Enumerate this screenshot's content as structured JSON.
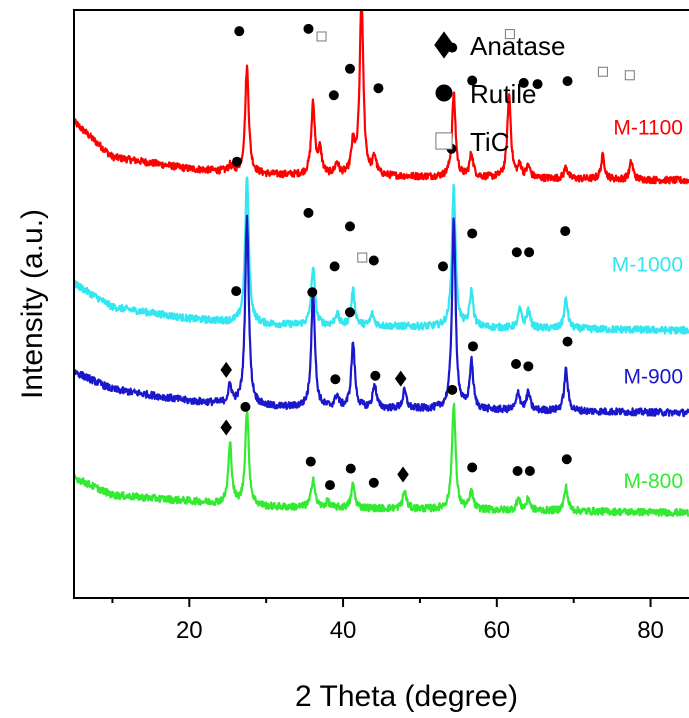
{
  "chart_data": {
    "type": "line",
    "title": "",
    "xlabel": "2 Theta (degree)",
    "ylabel": "Intensity (a.u.)",
    "xlim": [
      5,
      85
    ],
    "xticks": [
      20,
      40,
      60,
      80
    ],
    "y_tick_labels": false,
    "legend": {
      "placement": "top-right",
      "items": [
        {
          "marker": "diamond",
          "label": "Anatase"
        },
        {
          "marker": "circle",
          "label": "Rutile"
        },
        {
          "marker": "square-open",
          "label": "TiC"
        }
      ]
    },
    "series": [
      {
        "name": "M-1100",
        "color": "#ff0000",
        "baseline": 0.71,
        "noise": 0.006,
        "background": [
          [
            5,
            0.1
          ],
          [
            10,
            0.04
          ],
          [
            20,
            0.02
          ],
          [
            30,
            0.01
          ],
          [
            85,
            0.0
          ]
        ],
        "peaks": [
          [
            25.3,
            0.01
          ],
          [
            27.5,
            0.18
          ],
          [
            36.1,
            0.12
          ],
          [
            37.0,
            0.04
          ],
          [
            39.2,
            0.02
          ],
          [
            41.3,
            0.05
          ],
          [
            42.4,
            0.3
          ],
          [
            44.1,
            0.03
          ],
          [
            54.4,
            0.14
          ],
          [
            56.7,
            0.04
          ],
          [
            61.6,
            0.14
          ],
          [
            63.0,
            0.02
          ],
          [
            64.1,
            0.02
          ],
          [
            69.0,
            0.02
          ],
          [
            73.8,
            0.04
          ],
          [
            77.5,
            0.03
          ]
        ],
        "markers": [
          {
            "type": "circle",
            "x": 26.5,
            "y": 0.964
          },
          {
            "type": "circle",
            "x": 35.5,
            "y": 0.968
          },
          {
            "type": "square-open",
            "x": 37.2,
            "y": 0.955
          },
          {
            "type": "circle",
            "x": 38.8,
            "y": 0.855
          },
          {
            "type": "circle",
            "x": 40.9,
            "y": 0.9
          },
          {
            "type": "square-open",
            "x": 42.3,
            "y": 1.071
          },
          {
            "type": "circle",
            "x": 44.6,
            "y": 0.867
          },
          {
            "type": "circle",
            "x": 54.2,
            "y": 0.936
          },
          {
            "type": "square-open",
            "x": 61.7,
            "y": 0.959
          },
          {
            "type": "circle",
            "x": 56.8,
            "y": 0.88
          },
          {
            "type": "circle",
            "x": 63.5,
            "y": 0.876
          },
          {
            "type": "circle",
            "x": 65.3,
            "y": 0.874
          },
          {
            "type": "circle",
            "x": 69.2,
            "y": 0.879
          },
          {
            "type": "square-open",
            "x": 73.8,
            "y": 0.895
          },
          {
            "type": "square-open",
            "x": 77.3,
            "y": 0.889
          }
        ]
      },
      {
        "name": "M-1000",
        "color": "#33e6ef",
        "baseline": 0.455,
        "noise": 0.006,
        "background": [
          [
            5,
            0.08
          ],
          [
            10,
            0.04
          ],
          [
            20,
            0.02
          ],
          [
            30,
            0.01
          ],
          [
            85,
            0.0
          ]
        ],
        "peaks": [
          [
            27.5,
            0.25
          ],
          [
            36.1,
            0.1
          ],
          [
            39.2,
            0.02
          ],
          [
            41.3,
            0.06
          ],
          [
            43.8,
            0.02
          ],
          [
            54.4,
            0.24
          ],
          [
            56.7,
            0.06
          ],
          [
            63.0,
            0.03
          ],
          [
            64.1,
            0.03
          ],
          [
            69.0,
            0.05
          ]
        ],
        "markers": [
          {
            "type": "circle",
            "x": 26.2,
            "y": 0.742
          },
          {
            "type": "circle",
            "x": 35.5,
            "y": 0.655
          },
          {
            "type": "circle",
            "x": 38.9,
            "y": 0.564
          },
          {
            "type": "circle",
            "x": 40.9,
            "y": 0.632
          },
          {
            "type": "square-open",
            "x": 42.5,
            "y": 0.579
          },
          {
            "type": "circle",
            "x": 44.0,
            "y": 0.574
          },
          {
            "type": "circle",
            "x": 54.1,
            "y": 0.764
          },
          {
            "type": "circle",
            "x": 56.8,
            "y": 0.62
          },
          {
            "type": "circle",
            "x": 62.6,
            "y": 0.588
          },
          {
            "type": "circle",
            "x": 64.2,
            "y": 0.588
          },
          {
            "type": "circle",
            "x": 68.9,
            "y": 0.624
          }
        ]
      },
      {
        "name": "M-900",
        "color": "#1a17cc",
        "baseline": 0.315,
        "noise": 0.006,
        "background": [
          [
            5,
            0.07
          ],
          [
            10,
            0.04
          ],
          [
            20,
            0.02
          ],
          [
            30,
            0.01
          ],
          [
            85,
            0.0
          ]
        ],
        "peaks": [
          [
            25.3,
            0.03
          ],
          [
            27.5,
            0.32
          ],
          [
            36.1,
            0.2
          ],
          [
            39.2,
            0.02
          ],
          [
            41.3,
            0.11
          ],
          [
            44.1,
            0.04
          ],
          [
            48.0,
            0.03
          ],
          [
            54.4,
            0.32
          ],
          [
            56.7,
            0.08
          ],
          [
            62.8,
            0.03
          ],
          [
            64.1,
            0.03
          ],
          [
            69.0,
            0.07
          ]
        ],
        "markers": [
          {
            "type": "diamond",
            "x": 24.8,
            "y": 0.388
          },
          {
            "type": "circle",
            "x": 26.1,
            "y": 0.522
          },
          {
            "type": "circle",
            "x": 36.0,
            "y": 0.52
          },
          {
            "type": "circle",
            "x": 39.0,
            "y": 0.372
          },
          {
            "type": "circle",
            "x": 40.9,
            "y": 0.486
          },
          {
            "type": "circle",
            "x": 44.2,
            "y": 0.378
          },
          {
            "type": "diamond",
            "x": 47.5,
            "y": 0.373
          },
          {
            "type": "circle",
            "x": 53.0,
            "y": 0.564
          },
          {
            "type": "circle",
            "x": 56.9,
            "y": 0.428
          },
          {
            "type": "circle",
            "x": 62.5,
            "y": 0.398
          },
          {
            "type": "circle",
            "x": 64.1,
            "y": 0.394
          },
          {
            "type": "circle",
            "x": 69.2,
            "y": 0.436
          }
        ]
      },
      {
        "name": "M-800",
        "color": "#33ea33",
        "baseline": 0.145,
        "noise": 0.006,
        "background": [
          [
            5,
            0.06
          ],
          [
            10,
            0.03
          ],
          [
            20,
            0.02
          ],
          [
            30,
            0.01
          ],
          [
            85,
            0.0
          ]
        ],
        "peaks": [
          [
            25.3,
            0.1
          ],
          [
            27.5,
            0.16
          ],
          [
            36.1,
            0.05
          ],
          [
            38.0,
            0.01
          ],
          [
            41.3,
            0.04
          ],
          [
            48.0,
            0.03
          ],
          [
            54.4,
            0.18
          ],
          [
            56.7,
            0.03
          ],
          [
            62.8,
            0.02
          ],
          [
            64.1,
            0.02
          ],
          [
            69.0,
            0.04
          ]
        ],
        "markers": [
          {
            "type": "diamond",
            "x": 24.8,
            "y": 0.29
          },
          {
            "type": "circle",
            "x": 27.3,
            "y": 0.325
          },
          {
            "type": "circle",
            "x": 35.8,
            "y": 0.232
          },
          {
            "type": "circle",
            "x": 38.3,
            "y": 0.192
          },
          {
            "type": "circle",
            "x": 41.0,
            "y": 0.22
          },
          {
            "type": "circle",
            "x": 44.0,
            "y": 0.196
          },
          {
            "type": "diamond",
            "x": 47.8,
            "y": 0.21
          },
          {
            "type": "circle",
            "x": 54.2,
            "y": 0.354
          },
          {
            "type": "circle",
            "x": 56.8,
            "y": 0.222
          },
          {
            "type": "circle",
            "x": 62.7,
            "y": 0.216
          },
          {
            "type": "circle",
            "x": 64.3,
            "y": 0.216
          },
          {
            "type": "circle",
            "x": 69.1,
            "y": 0.236
          }
        ]
      }
    ]
  }
}
